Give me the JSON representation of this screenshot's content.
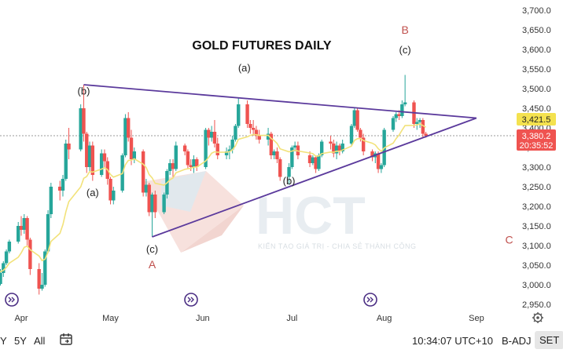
{
  "chart_data": {
    "type": "candlestick",
    "title": "GOLD FUTURES DAILY",
    "x_ticks": [
      "Apr",
      "May",
      "Jun",
      "Jul",
      "Aug",
      "Sep"
    ],
    "y_ticks": [
      "2,950.0",
      "3,000.0",
      "3,050.0",
      "3,100.0",
      "3,150.0",
      "3,200.0",
      "3,250.0",
      "3,300.0",
      "3,350.0",
      "3,400.0",
      "3,450.0",
      "3,500.0",
      "3,550.0",
      "3,600.0",
      "3,650.0",
      "3,700.0"
    ],
    "ylim": [
      2935,
      3705
    ],
    "price_labels": {
      "ma": "3,421.5",
      "last": "3,380.2",
      "countdown": "20:35:52"
    },
    "wave_labels": [
      {
        "text": "(b)",
        "date": "2025-04-22",
        "price": 3485
      },
      {
        "text": "(a)",
        "date": "2025-04-25",
        "price": 3226
      },
      {
        "text": "(c)",
        "date": "2025-05-15",
        "price": 3082
      },
      {
        "text": "A",
        "date": "2025-05-15",
        "price": 3042,
        "color": "red"
      },
      {
        "text": "(a)",
        "date": "2025-06-15",
        "price": 3544
      },
      {
        "text": "(b)",
        "date": "2025-06-30",
        "price": 3256
      },
      {
        "text": "(c)",
        "date": "2025-08-08",
        "price": 3590
      },
      {
        "text": "B",
        "date": "2025-08-08",
        "price": 3640,
        "color": "red"
      },
      {
        "text": "C",
        "date": "2025-09-12",
        "price": 3105,
        "color": "red"
      }
    ],
    "trendlines": [
      {
        "x1": "2025-04-22",
        "y1": 3510,
        "x2": "2025-09-01",
        "y2": 3425
      },
      {
        "x1": "2025-05-15",
        "y1": 3122,
        "x2": "2025-09-01",
        "y2": 3425
      }
    ],
    "colors": {
      "up": "#26a69a",
      "down": "#ef5350",
      "ma": "#f2e27a",
      "trendline": "#5b3a9c",
      "label_red": "#c0504d",
      "ma_tag": "#f4e24f",
      "last_tag": "#ef5350"
    },
    "candles": [
      {
        "d": "2025-03-24",
        "o": 3025,
        "h": 3030,
        "l": 2990,
        "c": 3002
      },
      {
        "d": "2025-03-25",
        "o": 3002,
        "h": 3040,
        "l": 2998,
        "c": 3030
      },
      {
        "d": "2025-03-26",
        "o": 3030,
        "h": 3060,
        "l": 3020,
        "c": 3055
      },
      {
        "d": "2025-03-27",
        "o": 3055,
        "h": 3090,
        "l": 3050,
        "c": 3085
      },
      {
        "d": "2025-03-28",
        "o": 3085,
        "h": 3115,
        "l": 3080,
        "c": 3110
      },
      {
        "d": "2025-03-31",
        "o": 3110,
        "h": 3160,
        "l": 3105,
        "c": 3150
      },
      {
        "d": "2025-04-01",
        "o": 3150,
        "h": 3175,
        "l": 3125,
        "c": 3140
      },
      {
        "d": "2025-04-02",
        "o": 3140,
        "h": 3180,
        "l": 3130,
        "c": 3170
      },
      {
        "d": "2025-04-03",
        "o": 3170,
        "h": 3175,
        "l": 3100,
        "c": 3115
      },
      {
        "d": "2025-04-04",
        "o": 3115,
        "h": 3120,
        "l": 3025,
        "c": 3040
      },
      {
        "d": "2025-04-07",
        "o": 3040,
        "h": 3055,
        "l": 2975,
        "c": 2990
      },
      {
        "d": "2025-04-08",
        "o": 2990,
        "h": 3030,
        "l": 2985,
        "c": 3000
      },
      {
        "d": "2025-04-09",
        "o": 3000,
        "h": 3090,
        "l": 2995,
        "c": 3085
      },
      {
        "d": "2025-04-10",
        "o": 3085,
        "h": 3190,
        "l": 3080,
        "c": 3180
      },
      {
        "d": "2025-04-11",
        "o": 3180,
        "h": 3260,
        "l": 3170,
        "c": 3250
      },
      {
        "d": "2025-04-14",
        "o": 3250,
        "h": 3265,
        "l": 3215,
        "c": 3240
      },
      {
        "d": "2025-04-15",
        "o": 3240,
        "h": 3280,
        "l": 3225,
        "c": 3270
      },
      {
        "d": "2025-04-16",
        "o": 3270,
        "h": 3370,
        "l": 3265,
        "c": 3360
      },
      {
        "d": "2025-04-17",
        "o": 3360,
        "h": 3400,
        "l": 3320,
        "c": 3345
      },
      {
        "d": "2025-04-21",
        "o": 3345,
        "h": 3460,
        "l": 3340,
        "c": 3450
      },
      {
        "d": "2025-04-22",
        "o": 3450,
        "h": 3510,
        "l": 3365,
        "c": 3385
      },
      {
        "d": "2025-04-23",
        "o": 3385,
        "h": 3390,
        "l": 3285,
        "c": 3300
      },
      {
        "d": "2025-04-24",
        "o": 3300,
        "h": 3365,
        "l": 3290,
        "c": 3355
      },
      {
        "d": "2025-04-25",
        "o": 3355,
        "h": 3365,
        "l": 3265,
        "c": 3280
      },
      {
        "d": "2025-04-28",
        "o": 3280,
        "h": 3345,
        "l": 3275,
        "c": 3335
      },
      {
        "d": "2025-04-29",
        "o": 3335,
        "h": 3345,
        "l": 3300,
        "c": 3315
      },
      {
        "d": "2025-04-30",
        "o": 3315,
        "h": 3325,
        "l": 3255,
        "c": 3270
      },
      {
        "d": "2025-05-01",
        "o": 3270,
        "h": 3275,
        "l": 3205,
        "c": 3215
      },
      {
        "d": "2025-05-02",
        "o": 3215,
        "h": 3250,
        "l": 3205,
        "c": 3240
      },
      {
        "d": "2025-05-05",
        "o": 3240,
        "h": 3335,
        "l": 3235,
        "c": 3330
      },
      {
        "d": "2025-05-06",
        "o": 3330,
        "h": 3435,
        "l": 3325,
        "c": 3425
      },
      {
        "d": "2025-05-07",
        "o": 3425,
        "h": 3440,
        "l": 3365,
        "c": 3375
      },
      {
        "d": "2025-05-08",
        "o": 3375,
        "h": 3395,
        "l": 3305,
        "c": 3320
      },
      {
        "d": "2025-05-09",
        "o": 3320,
        "h": 3350,
        "l": 3310,
        "c": 3340
      },
      {
        "d": "2025-05-12",
        "o": 3340,
        "h": 3345,
        "l": 3225,
        "c": 3235
      },
      {
        "d": "2025-05-13",
        "o": 3235,
        "h": 3270,
        "l": 3225,
        "c": 3255
      },
      {
        "d": "2025-05-14",
        "o": 3255,
        "h": 3260,
        "l": 3175,
        "c": 3185
      },
      {
        "d": "2025-05-15",
        "o": 3185,
        "h": 3235,
        "l": 3122,
        "c": 3230
      },
      {
        "d": "2025-05-16",
        "o": 3230,
        "h": 3240,
        "l": 3170,
        "c": 3185
      },
      {
        "d": "2025-05-19",
        "o": 3185,
        "h": 3235,
        "l": 3180,
        "c": 3230
      },
      {
        "d": "2025-05-20",
        "o": 3230,
        "h": 3295,
        "l": 3220,
        "c": 3290
      },
      {
        "d": "2025-05-21",
        "o": 3290,
        "h": 3320,
        "l": 3280,
        "c": 3310
      },
      {
        "d": "2025-05-22",
        "o": 3310,
        "h": 3320,
        "l": 3275,
        "c": 3295
      },
      {
        "d": "2025-05-23",
        "o": 3295,
        "h": 3365,
        "l": 3290,
        "c": 3355
      },
      {
        "d": "2025-05-26",
        "o": 3355,
        "h": 3360,
        "l": 3330,
        "c": 3340
      },
      {
        "d": "2025-05-27",
        "o": 3340,
        "h": 3345,
        "l": 3295,
        "c": 3305
      },
      {
        "d": "2025-05-28",
        "o": 3305,
        "h": 3320,
        "l": 3290,
        "c": 3300
      },
      {
        "d": "2025-05-29",
        "o": 3300,
        "h": 3330,
        "l": 3285,
        "c": 3320
      },
      {
        "d": "2025-05-30",
        "o": 3320,
        "h": 3325,
        "l": 3290,
        "c": 3300
      },
      {
        "d": "2025-06-02",
        "o": 3300,
        "h": 3400,
        "l": 3295,
        "c": 3395
      },
      {
        "d": "2025-06-03",
        "o": 3395,
        "h": 3400,
        "l": 3355,
        "c": 3375
      },
      {
        "d": "2025-06-04",
        "o": 3375,
        "h": 3405,
        "l": 3365,
        "c": 3390
      },
      {
        "d": "2025-06-05",
        "o": 3390,
        "h": 3420,
        "l": 3350,
        "c": 3360
      },
      {
        "d": "2025-06-06",
        "o": 3360,
        "h": 3375,
        "l": 3320,
        "c": 3330
      },
      {
        "d": "2025-06-09",
        "o": 3330,
        "h": 3350,
        "l": 3320,
        "c": 3340
      },
      {
        "d": "2025-06-10",
        "o": 3340,
        "h": 3355,
        "l": 3320,
        "c": 3345
      },
      {
        "d": "2025-06-11",
        "o": 3345,
        "h": 3380,
        "l": 3335,
        "c": 3370
      },
      {
        "d": "2025-06-12",
        "o": 3370,
        "h": 3410,
        "l": 3365,
        "c": 3405
      },
      {
        "d": "2025-06-13",
        "o": 3405,
        "h": 3475,
        "l": 3400,
        "c": 3460
      },
      {
        "d": "2025-06-16",
        "o": 3460,
        "h": 3470,
        "l": 3400,
        "c": 3410
      },
      {
        "d": "2025-06-17",
        "o": 3410,
        "h": 3420,
        "l": 3385,
        "c": 3400
      },
      {
        "d": "2025-06-18",
        "o": 3400,
        "h": 3420,
        "l": 3380,
        "c": 3395
      },
      {
        "d": "2025-06-19",
        "o": 3395,
        "h": 3405,
        "l": 3370,
        "c": 3380
      },
      {
        "d": "2025-06-20",
        "o": 3380,
        "h": 3395,
        "l": 3360,
        "c": 3370
      },
      {
        "d": "2025-06-23",
        "o": 3370,
        "h": 3400,
        "l": 3355,
        "c": 3385
      },
      {
        "d": "2025-06-24",
        "o": 3385,
        "h": 3390,
        "l": 3320,
        "c": 3330
      },
      {
        "d": "2025-06-25",
        "o": 3330,
        "h": 3345,
        "l": 3320,
        "c": 3340
      },
      {
        "d": "2025-06-26",
        "o": 3340,
        "h": 3350,
        "l": 3310,
        "c": 3320
      },
      {
        "d": "2025-06-27",
        "o": 3320,
        "h": 3325,
        "l": 3265,
        "c": 3275
      },
      {
        "d": "2025-06-30",
        "o": 3275,
        "h": 3310,
        "l": 3255,
        "c": 3300
      },
      {
        "d": "2025-07-01",
        "o": 3300,
        "h": 3355,
        "l": 3295,
        "c": 3350
      },
      {
        "d": "2025-07-02",
        "o": 3350,
        "h": 3365,
        "l": 3340,
        "c": 3355
      },
      {
        "d": "2025-07-03",
        "o": 3355,
        "h": 3365,
        "l": 3320,
        "c": 3330
      },
      {
        "d": "2025-07-07",
        "o": 3330,
        "h": 3340,
        "l": 3300,
        "c": 3310
      },
      {
        "d": "2025-07-08",
        "o": 3310,
        "h": 3330,
        "l": 3305,
        "c": 3325
      },
      {
        "d": "2025-07-09",
        "o": 3325,
        "h": 3330,
        "l": 3285,
        "c": 3295
      },
      {
        "d": "2025-07-10",
        "o": 3295,
        "h": 3335,
        "l": 3290,
        "c": 3330
      },
      {
        "d": "2025-07-11",
        "o": 3330,
        "h": 3370,
        "l": 3325,
        "c": 3365
      },
      {
        "d": "2025-07-14",
        "o": 3365,
        "h": 3380,
        "l": 3345,
        "c": 3360
      },
      {
        "d": "2025-07-15",
        "o": 3360,
        "h": 3370,
        "l": 3325,
        "c": 3335
      },
      {
        "d": "2025-07-16",
        "o": 3335,
        "h": 3365,
        "l": 3320,
        "c": 3355
      },
      {
        "d": "2025-07-17",
        "o": 3355,
        "h": 3360,
        "l": 3330,
        "c": 3340
      },
      {
        "d": "2025-07-18",
        "o": 3340,
        "h": 3370,
        "l": 3335,
        "c": 3360
      },
      {
        "d": "2025-07-21",
        "o": 3360,
        "h": 3410,
        "l": 3355,
        "c": 3405
      },
      {
        "d": "2025-07-22",
        "o": 3405,
        "h": 3450,
        "l": 3400,
        "c": 3445
      },
      {
        "d": "2025-07-23",
        "o": 3445,
        "h": 3450,
        "l": 3390,
        "c": 3395
      },
      {
        "d": "2025-07-24",
        "o": 3395,
        "h": 3400,
        "l": 3365,
        "c": 3375
      },
      {
        "d": "2025-07-25",
        "o": 3375,
        "h": 3385,
        "l": 3330,
        "c": 3340
      },
      {
        "d": "2025-07-28",
        "o": 3340,
        "h": 3345,
        "l": 3315,
        "c": 3325
      },
      {
        "d": "2025-07-29",
        "o": 3325,
        "h": 3340,
        "l": 3310,
        "c": 3335
      },
      {
        "d": "2025-07-30",
        "o": 3335,
        "h": 3340,
        "l": 3285,
        "c": 3295
      },
      {
        "d": "2025-07-31",
        "o": 3295,
        "h": 3310,
        "l": 3285,
        "c": 3305
      },
      {
        "d": "2025-08-01",
        "o": 3305,
        "h": 3400,
        "l": 3300,
        "c": 3395
      },
      {
        "d": "2025-08-04",
        "o": 3395,
        "h": 3430,
        "l": 3390,
        "c": 3425
      },
      {
        "d": "2025-08-05",
        "o": 3425,
        "h": 3440,
        "l": 3415,
        "c": 3435
      },
      {
        "d": "2025-08-06",
        "o": 3435,
        "h": 3445,
        "l": 3420,
        "c": 3430
      },
      {
        "d": "2025-08-07",
        "o": 3430,
        "h": 3470,
        "l": 3425,
        "c": 3460
      },
      {
        "d": "2025-08-08",
        "o": 3460,
        "h": 3535,
        "l": 3455,
        "c": 3465
      },
      {
        "d": "2025-08-11",
        "o": 3465,
        "h": 3470,
        "l": 3400,
        "c": 3410
      },
      {
        "d": "2025-08-12",
        "o": 3410,
        "h": 3425,
        "l": 3395,
        "c": 3415
      },
      {
        "d": "2025-08-13",
        "o": 3415,
        "h": 3425,
        "l": 3400,
        "c": 3420
      },
      {
        "d": "2025-08-14",
        "o": 3420,
        "h": 3425,
        "l": 3375,
        "c": 3385
      },
      {
        "d": "2025-08-15",
        "o": 3385,
        "h": 3390,
        "l": 3375,
        "c": 3380
      }
    ],
    "ma_start": 3040
  },
  "watermark": {
    "logo_text": "HCT",
    "tagline": "KIẾN TẠO GIÁ TRỊ - CHIA SẺ THÀNH CÔNG"
  },
  "bottom_bar": {
    "range_y": "Y",
    "range_5y": "5Y",
    "range_all": "All",
    "calendar_icon": "calendar-icon",
    "clock": "10:34:07 UTC+10",
    "adj": "B-ADJ",
    "session": "SET"
  },
  "icons": {
    "settings": "gear-icon",
    "event": "event-icon"
  }
}
